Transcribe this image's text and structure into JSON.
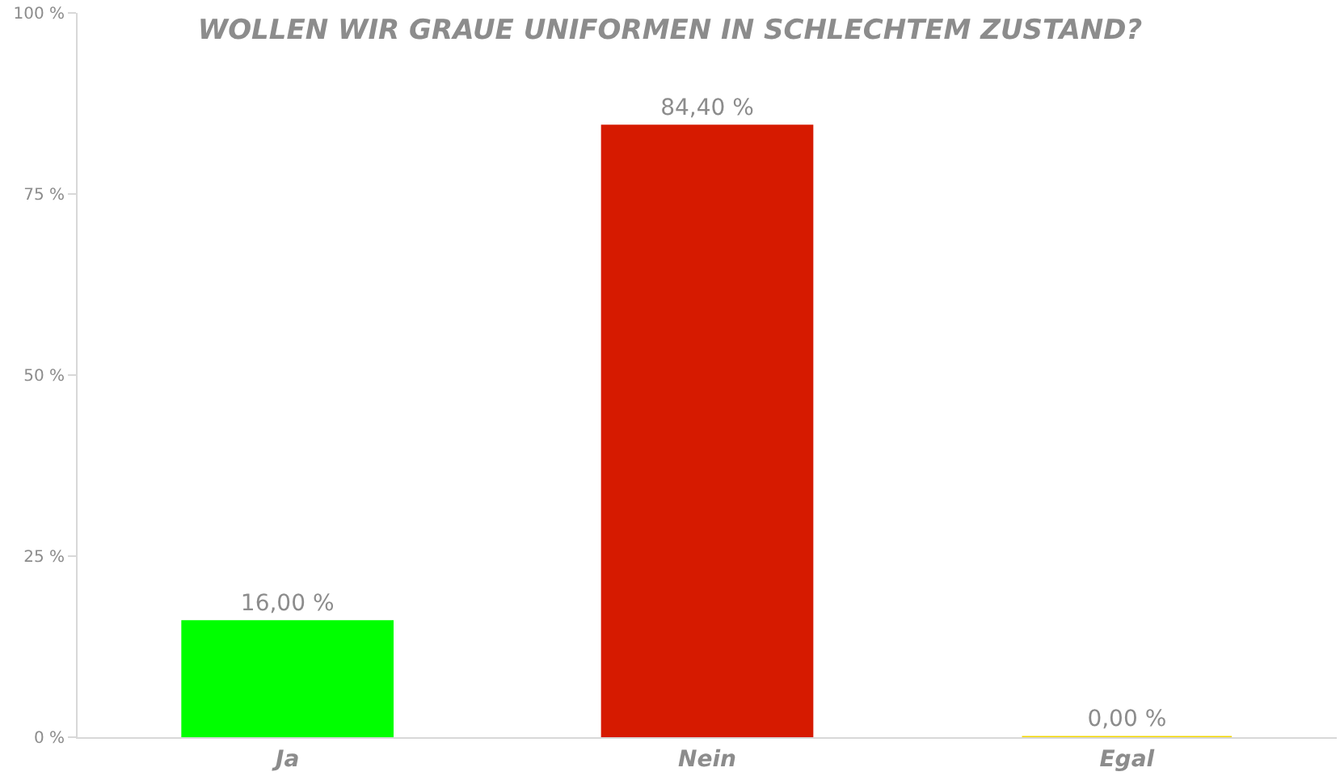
{
  "chart_data": {
    "type": "bar",
    "title": "WOLLEN WIR GRAUE UNIFORMEN IN SCHLECHTEM ZUSTAND?",
    "categories": [
      "Ja",
      "Nein",
      "Egal"
    ],
    "values": [
      16.0,
      84.4,
      0.0
    ],
    "colors": [
      "#00ff00",
      "#d61a00",
      "#f2d600"
    ],
    "value_labels": [
      "16,00 %",
      "84,40 %",
      "0,00 %"
    ],
    "ylim": [
      0,
      100
    ],
    "yticks": [
      {
        "value": 0,
        "label": "0 %"
      },
      {
        "value": 25,
        "label": "25 %"
      },
      {
        "value": 50,
        "label": "50 %"
      },
      {
        "value": 75,
        "label": "75 %"
      },
      {
        "value": 100,
        "label": "100 %"
      }
    ]
  }
}
